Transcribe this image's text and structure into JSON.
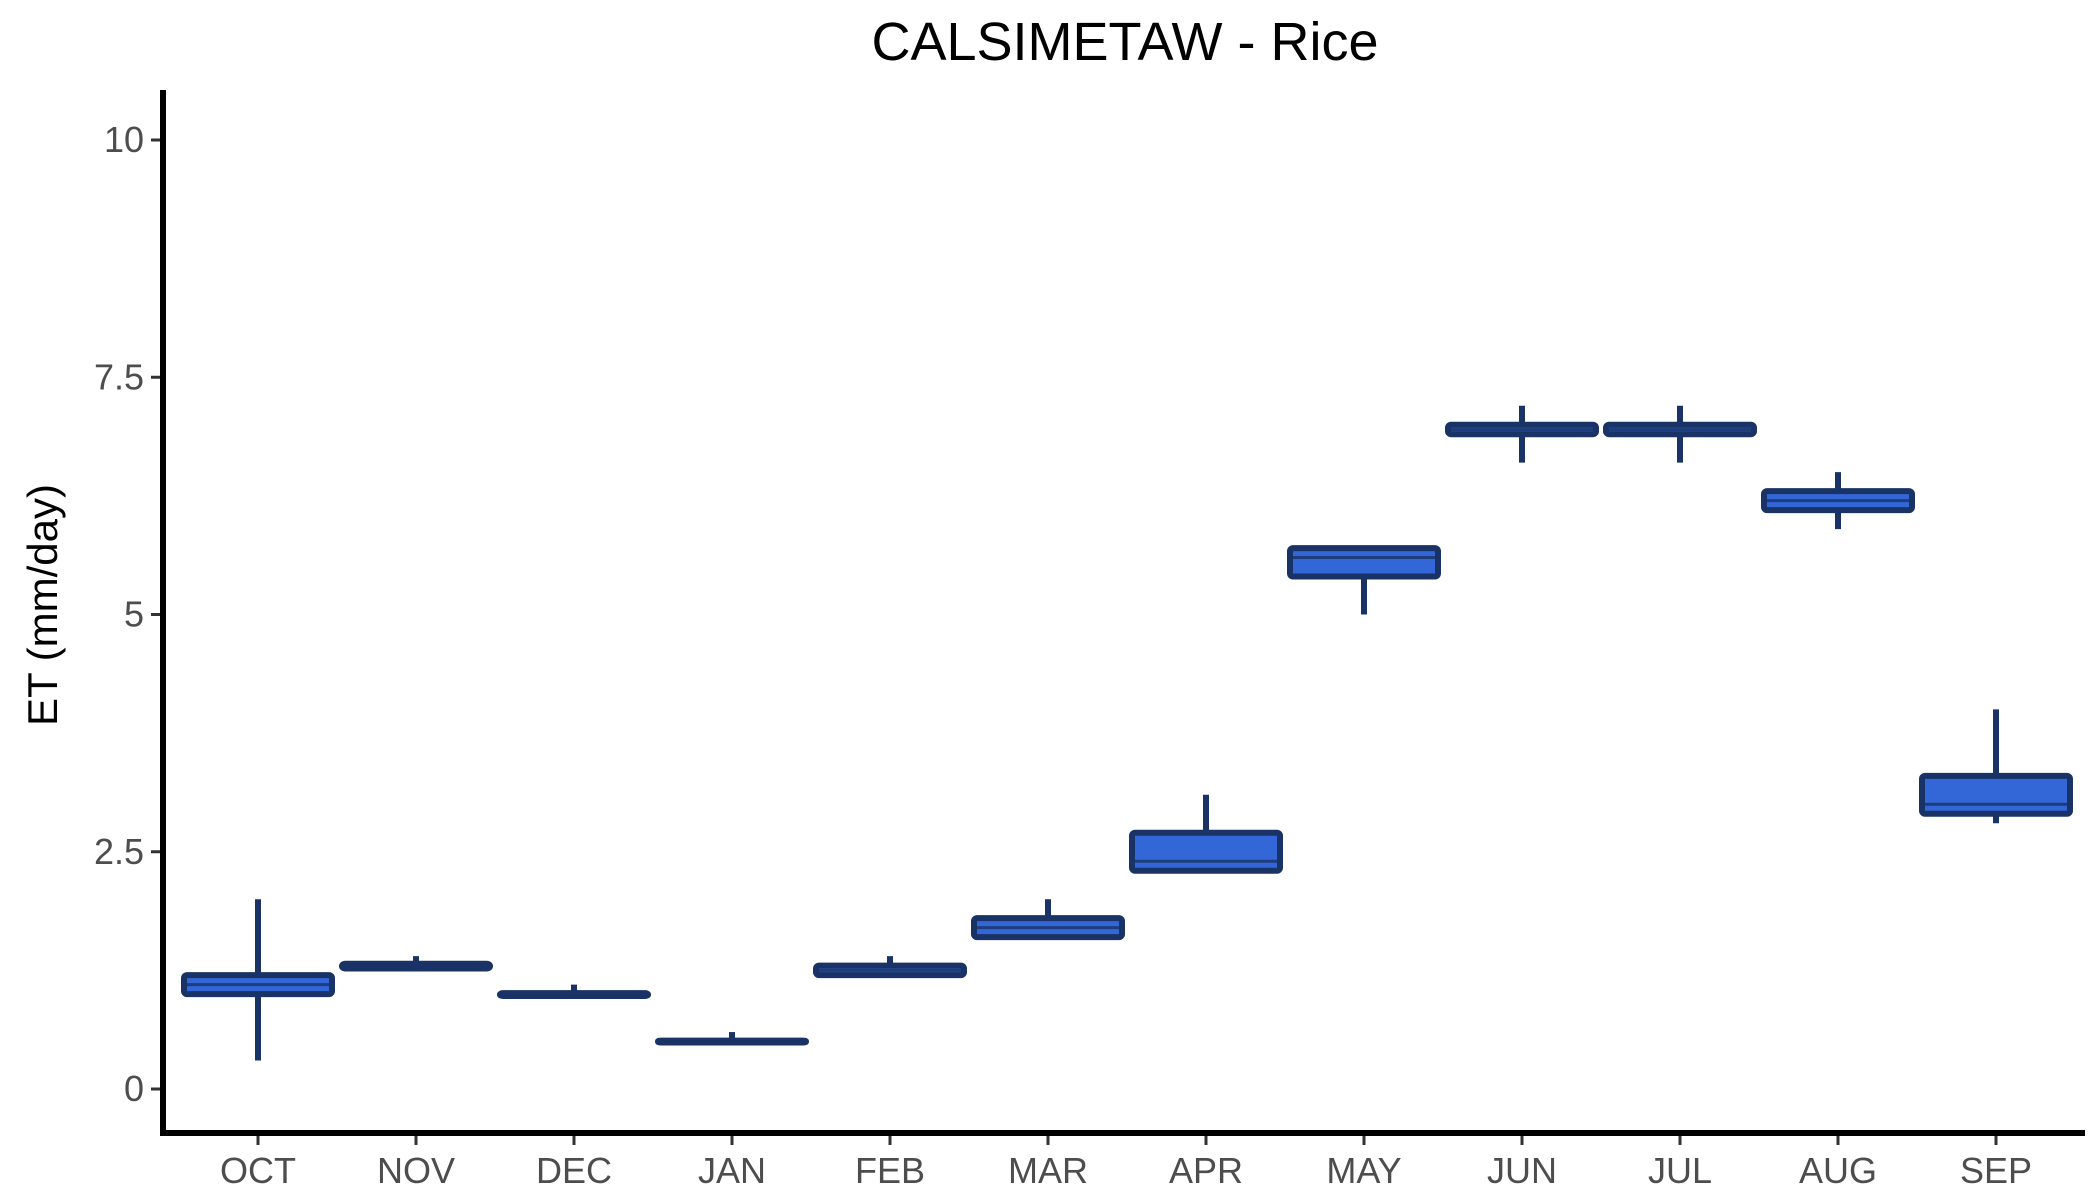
{
  "chart_data": {
    "type": "boxplot",
    "title": "CALSIMETAW - Rice",
    "xlabel": "",
    "ylabel": "ET (mm/day)",
    "ylim": [
      -0.45,
      10.5
    ],
    "yticks": [
      0,
      2.5,
      5,
      7.5,
      10
    ],
    "ytick_labels": [
      "0",
      "2.5",
      "5",
      "7.5",
      "10"
    ],
    "grid": false,
    "legend": "none",
    "colors": {
      "box_fill": "#3366d6",
      "box_edge": "#1a3366",
      "axis": "#000000",
      "tick_label": "#4d4d4d"
    },
    "categories": [
      "OCT",
      "NOV",
      "DEC",
      "JAN",
      "FEB",
      "MAR",
      "APR",
      "MAY",
      "JUN",
      "JUL",
      "AUG",
      "SEP"
    ],
    "boxes": [
      {
        "month": "OCT",
        "min": 0.3,
        "q1": 1.0,
        "median": 1.1,
        "q3": 1.2,
        "max": 2.0
      },
      {
        "month": "NOV",
        "min": 1.27,
        "q1": 1.27,
        "median": 1.3,
        "q3": 1.32,
        "max": 1.4
      },
      {
        "month": "DEC",
        "min": 0.98,
        "q1": 0.98,
        "median": 1.0,
        "q3": 1.01,
        "max": 1.1
      },
      {
        "month": "JAN",
        "min": 0.49,
        "q1": 0.49,
        "median": 0.5,
        "q3": 0.51,
        "max": 0.6
      },
      {
        "month": "FEB",
        "min": 1.2,
        "q1": 1.2,
        "median": 1.25,
        "q3": 1.3,
        "max": 1.4
      },
      {
        "month": "MAR",
        "min": 1.6,
        "q1": 1.6,
        "median": 1.7,
        "q3": 1.8,
        "max": 2.0
      },
      {
        "month": "APR",
        "min": 2.3,
        "q1": 2.3,
        "median": 2.4,
        "q3": 2.7,
        "max": 3.1
      },
      {
        "month": "MAY",
        "min": 5.0,
        "q1": 5.4,
        "median": 5.6,
        "q3": 5.7,
        "max": 5.7
      },
      {
        "month": "JUN",
        "min": 6.6,
        "q1": 6.9,
        "median": 6.95,
        "q3": 7.0,
        "max": 7.2
      },
      {
        "month": "JUL",
        "min": 6.6,
        "q1": 6.9,
        "median": 6.95,
        "q3": 7.0,
        "max": 7.2
      },
      {
        "month": "AUG",
        "min": 5.9,
        "q1": 6.1,
        "median": 6.2,
        "q3": 6.3,
        "max": 6.5
      },
      {
        "month": "SEP",
        "min": 2.8,
        "q1": 2.9,
        "median": 3.0,
        "q3": 3.3,
        "max": 4.0
      }
    ]
  }
}
